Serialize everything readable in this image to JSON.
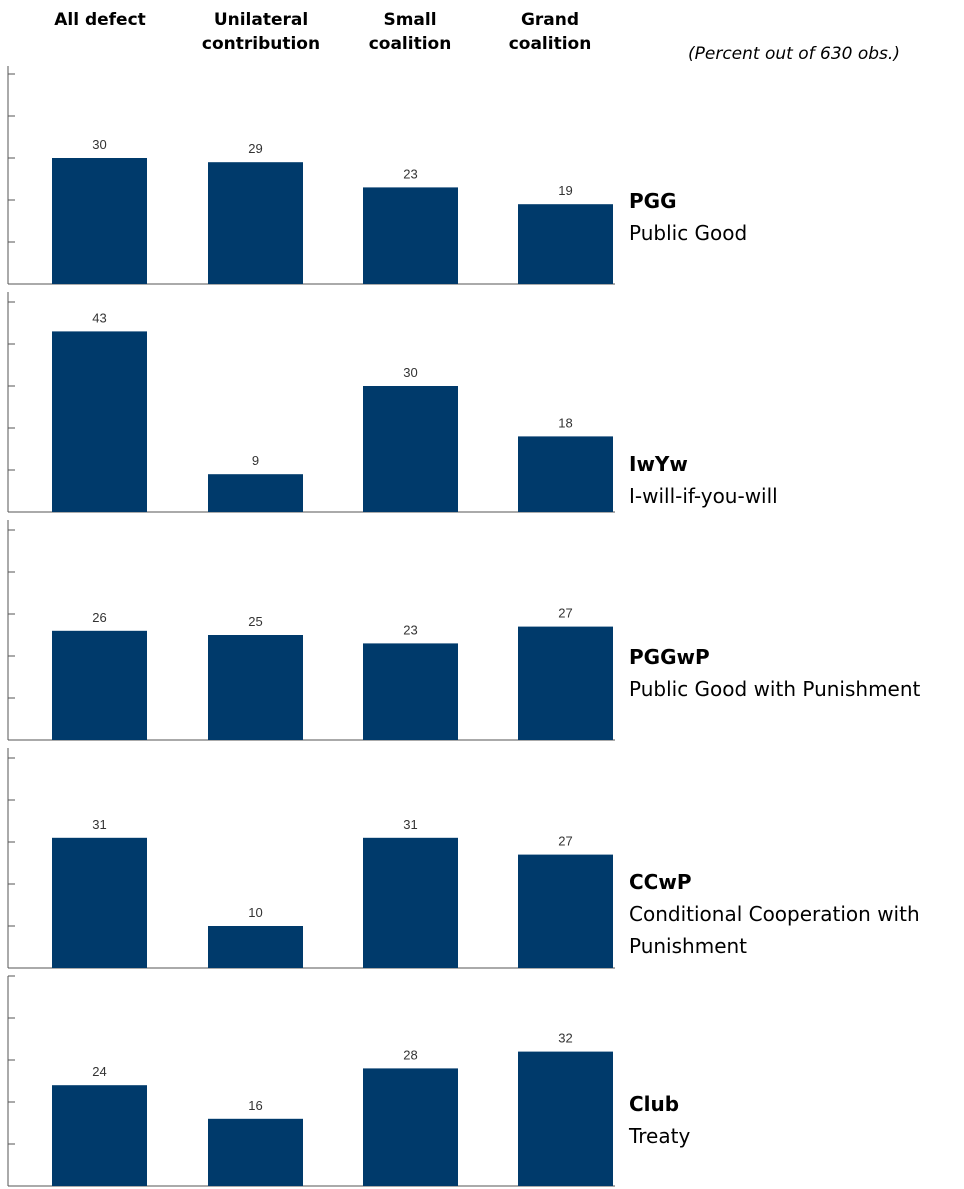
{
  "header": {
    "columns": [
      {
        "line1": "All defect",
        "line2": ""
      },
      {
        "line1": "Unilateral",
        "line2": "contribution"
      },
      {
        "line1": "Small",
        "line2": "coalition"
      },
      {
        "line1": "Grand",
        "line2": "coalition"
      }
    ],
    "note": "(Percent out of 630 obs.)"
  },
  "colors": {
    "bar": "#003a6b",
    "axis": "#555555"
  },
  "chart_data": [
    {
      "type": "bar",
      "categories": [
        "All defect",
        "Unilateral contribution",
        "Small coalition",
        "Grand coalition"
      ],
      "values": [
        30,
        29,
        23,
        19
      ],
      "panel_label": "PGG",
      "panel_desc": [
        "Public Good"
      ],
      "ylim": [
        0,
        50
      ]
    },
    {
      "type": "bar",
      "categories": [
        "All defect",
        "Unilateral contribution",
        "Small coalition",
        "Grand coalition"
      ],
      "values": [
        43,
        9,
        30,
        18
      ],
      "panel_label": "IwYw",
      "panel_desc": [
        "I-will-if-you-will"
      ],
      "ylim": [
        0,
        50
      ]
    },
    {
      "type": "bar",
      "categories": [
        "All defect",
        "Unilateral contribution",
        "Small coalition",
        "Grand coalition"
      ],
      "values": [
        26,
        25,
        23,
        27
      ],
      "panel_label": "PGGwP",
      "panel_desc": [
        "Public Good with Punishment"
      ],
      "ylim": [
        0,
        50
      ]
    },
    {
      "type": "bar",
      "categories": [
        "All defect",
        "Unilateral contribution",
        "Small coalition",
        "Grand coalition"
      ],
      "values": [
        31,
        10,
        31,
        27
      ],
      "panel_label": "CCwP",
      "panel_desc": [
        "Conditional Cooperation with",
        "Punishment"
      ],
      "ylim": [
        0,
        50
      ]
    },
    {
      "type": "bar",
      "categories": [
        "All defect",
        "Unilateral contribution",
        "Small coalition",
        "Grand coalition"
      ],
      "values": [
        24,
        16,
        28,
        32
      ],
      "panel_label": "Club",
      "panel_desc": [
        "Treaty"
      ],
      "ylim": [
        0,
        50
      ]
    }
  ]
}
